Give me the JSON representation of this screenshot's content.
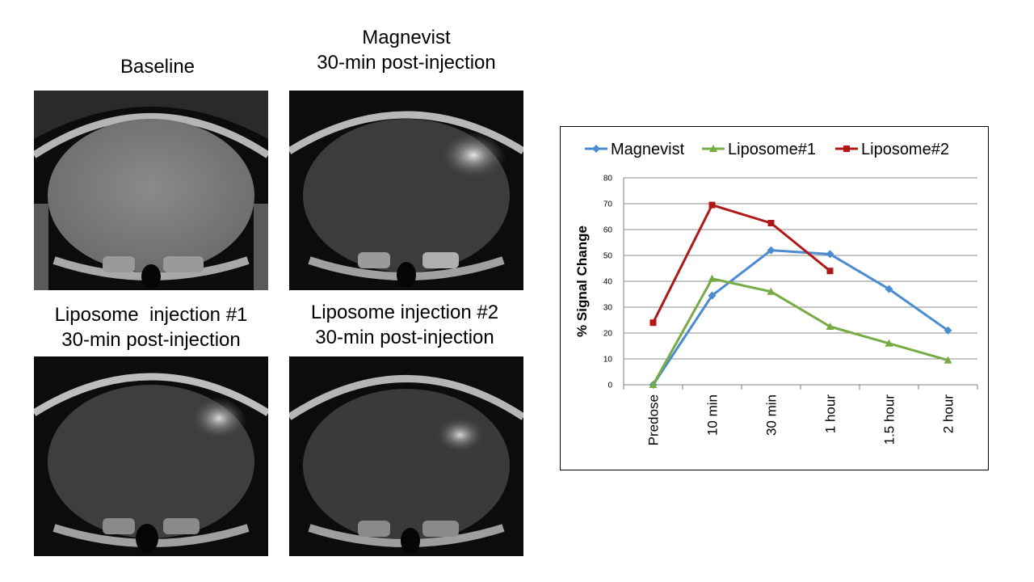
{
  "panels": [
    {
      "id": "baseline",
      "caption": [
        "Baseline"
      ]
    },
    {
      "id": "magnevist",
      "caption": [
        "Magnevist",
        "30-min post-injection"
      ]
    },
    {
      "id": "lipo1",
      "caption": [
        "Liposome  injection #1",
        "30-min post-injection"
      ]
    },
    {
      "id": "lipo2",
      "caption": [
        "Liposome injection #2",
        "30-min post-injection"
      ]
    }
  ],
  "chart_data": {
    "type": "line",
    "categories": [
      "Predose",
      "10 min",
      "30 min",
      "1 hour",
      "1.5 hour",
      "2 hour"
    ],
    "ylabel": "% Signal Change",
    "ylim": [
      0,
      80
    ],
    "yticks": [
      0,
      10,
      20,
      30,
      40,
      50,
      60,
      70,
      80
    ],
    "grid": true,
    "legend_position": "top",
    "series": [
      {
        "name": "Magnevist",
        "color": "#4a8ccf",
        "marker": "diamond",
        "values": [
          0,
          34.5,
          52,
          50.5,
          37,
          21
        ]
      },
      {
        "name": "Liposome#1",
        "color": "#77ab43",
        "marker": "triangle",
        "values": [
          0,
          41,
          36,
          22.5,
          16,
          9.5
        ]
      },
      {
        "name": "Liposome#2",
        "color": "#b01818",
        "marker": "square",
        "values": [
          24,
          69.5,
          62.5,
          44,
          null,
          null
        ]
      }
    ]
  }
}
